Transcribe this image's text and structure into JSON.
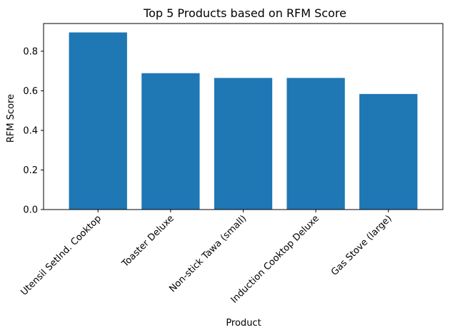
{
  "chart_data": {
    "type": "bar",
    "title": "Top 5 Products based on RFM Score",
    "xlabel": "Product",
    "ylabel": "RFM Score",
    "categories": [
      "Utensil SetInd. Cooktop",
      "Toaster Deluxe",
      "Non-stick Tawa (small)",
      "Induction Cooktop Deluxe",
      "Gas Stove (large)"
    ],
    "values": [
      0.895,
      0.689,
      0.665,
      0.665,
      0.584
    ],
    "ylim": [
      0,
      0.94
    ],
    "yticks": [
      "0.0",
      "0.2",
      "0.4",
      "0.6",
      "0.8"
    ],
    "bar_color": "#1f77b4",
    "grid": false,
    "legend": "none"
  }
}
